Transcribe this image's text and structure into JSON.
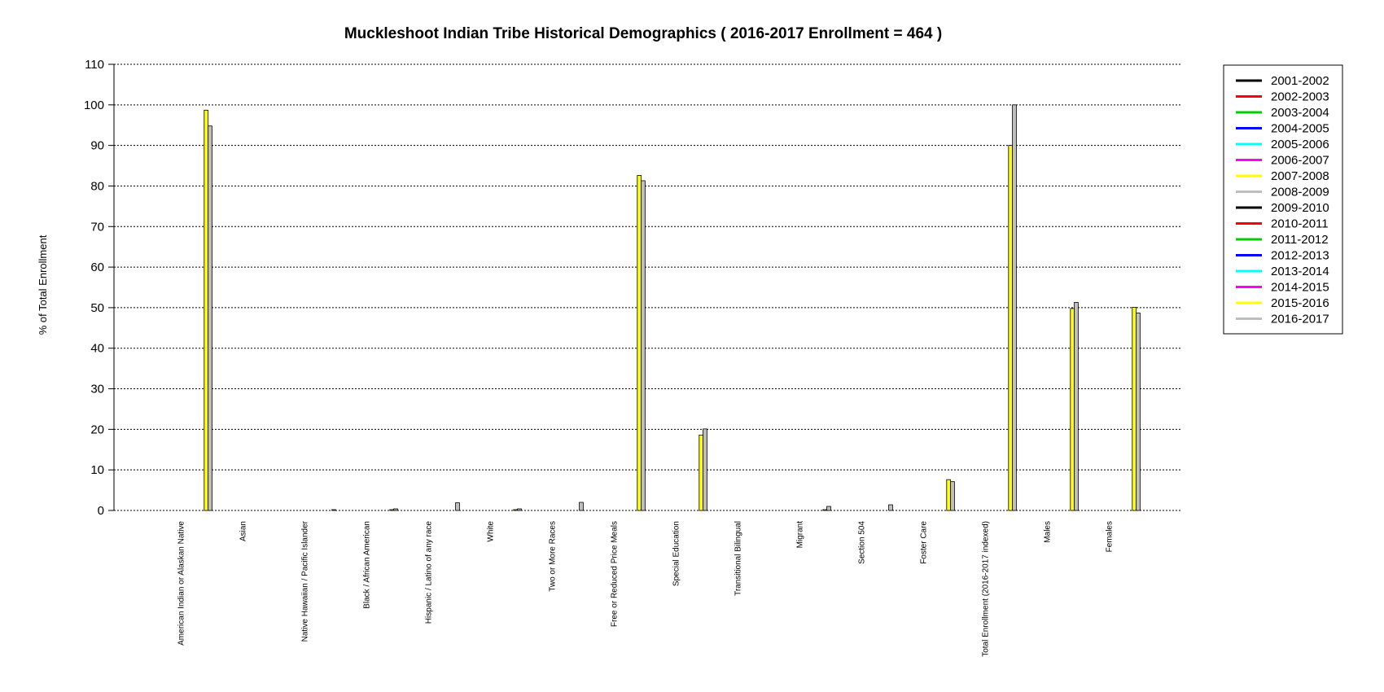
{
  "chart_data": {
    "type": "bar",
    "title": "Muckleshoot Indian Tribe Historical Demographics  ( 2016-2017 Enrollment =  464 )",
    "xlabel": "",
    "ylabel": "% of Total Enrollment",
    "ylim": [
      0,
      110
    ],
    "yticks": [
      0,
      10,
      20,
      30,
      40,
      50,
      60,
      70,
      80,
      90,
      100,
      110
    ],
    "grid": "horizontal-dotted",
    "legend_position": "right",
    "categories": [
      "American Indian or Alaskan Native",
      "Asian",
      "Native Hawaiian / Pacific Islander",
      "Black / African American",
      "Hispanic / Latino of any race",
      "White",
      "Two or More Races",
      "Free or Reduced Price Meals",
      "Special Education",
      "Transitional Bilingual",
      "Migrant",
      "Section 504",
      "Foster Care",
      "Total Enrollment (2016-2017 indexed)",
      "Males",
      "Females"
    ],
    "series": [
      {
        "name": "2001-2002",
        "color": "#000000",
        "values": [
          0,
          0,
          0,
          0,
          0,
          0,
          0,
          0,
          0,
          0,
          0,
          0,
          0,
          0,
          0,
          0
        ]
      },
      {
        "name": "2002-2003",
        "color": "#ff0000",
        "values": [
          0,
          0,
          0,
          0,
          0,
          0,
          0,
          0,
          0,
          0,
          0,
          0,
          0,
          0,
          0,
          0
        ]
      },
      {
        "name": "2003-2004",
        "color": "#00cd00",
        "values": [
          0,
          0,
          0,
          0,
          0,
          0,
          0,
          0,
          0,
          0,
          0,
          0,
          0,
          0,
          0,
          0
        ]
      },
      {
        "name": "2004-2005",
        "color": "#0000ff",
        "values": [
          0,
          0,
          0,
          0,
          0,
          0,
          0,
          0,
          0,
          0,
          0,
          0,
          0,
          0,
          0,
          0
        ]
      },
      {
        "name": "2005-2006",
        "color": "#00ffff",
        "values": [
          0,
          0,
          0,
          0,
          0,
          0,
          0,
          0,
          0,
          0,
          0,
          0,
          0,
          0,
          0,
          0
        ]
      },
      {
        "name": "2006-2007",
        "color": "#ff00ff",
        "values": [
          0,
          0,
          0,
          0,
          0,
          0,
          0,
          0,
          0,
          0,
          0,
          0,
          0,
          0,
          0,
          0
        ]
      },
      {
        "name": "2007-2008",
        "color": "#ffff00",
        "values": [
          0,
          0,
          0,
          0,
          0,
          0,
          0,
          0,
          0,
          0,
          0,
          0,
          0,
          0,
          0,
          0
        ]
      },
      {
        "name": "2008-2009",
        "color": "#bebebe",
        "values": [
          0,
          0,
          0,
          0,
          0,
          0,
          0,
          0,
          0,
          0,
          0,
          0,
          0,
          0,
          0,
          0
        ]
      },
      {
        "name": "2009-2010",
        "color": "#000000",
        "values": [
          0,
          0,
          0,
          0,
          0,
          0,
          0,
          0,
          0,
          0,
          0,
          0,
          0,
          0,
          0,
          0
        ]
      },
      {
        "name": "2010-2011",
        "color": "#ff0000",
        "values": [
          0,
          0,
          0,
          0,
          0,
          0,
          0,
          0,
          0,
          0,
          0,
          0,
          0,
          0,
          0,
          0
        ]
      },
      {
        "name": "2011-2012",
        "color": "#00cd00",
        "values": [
          0,
          0,
          0,
          0,
          0,
          0,
          0,
          0,
          0,
          0,
          0,
          0,
          0,
          0,
          0,
          0
        ]
      },
      {
        "name": "2012-2013",
        "color": "#0000ff",
        "values": [
          0,
          0,
          0,
          0,
          0,
          0,
          0,
          0,
          0,
          0,
          0,
          0,
          0,
          0,
          0,
          0
        ]
      },
      {
        "name": "2013-2014",
        "color": "#00ffff",
        "values": [
          0,
          0,
          0,
          0,
          0,
          0,
          0,
          0,
          0,
          0,
          0,
          0,
          0,
          0,
          0,
          0
        ]
      },
      {
        "name": "2014-2015",
        "color": "#ff00ff",
        "values": [
          0,
          0,
          0,
          0,
          0,
          0,
          0,
          0,
          0,
          0,
          0,
          0,
          0,
          0,
          0,
          0
        ]
      },
      {
        "name": "2015-2016",
        "color": "#ffff00",
        "values": [
          98.7,
          0,
          0,
          0.2,
          0,
          0.2,
          0,
          82.6,
          18.6,
          0,
          0.2,
          0,
          7.6,
          90,
          49.8,
          50.1
        ]
      },
      {
        "name": "2016-2017",
        "color": "#bebebe",
        "values": [
          94.8,
          0,
          0.2,
          0.4,
          1.9,
          0.4,
          2.0,
          81.3,
          20.1,
          0,
          1.0,
          1.4,
          7.1,
          100,
          51.3,
          48.7
        ]
      }
    ]
  }
}
